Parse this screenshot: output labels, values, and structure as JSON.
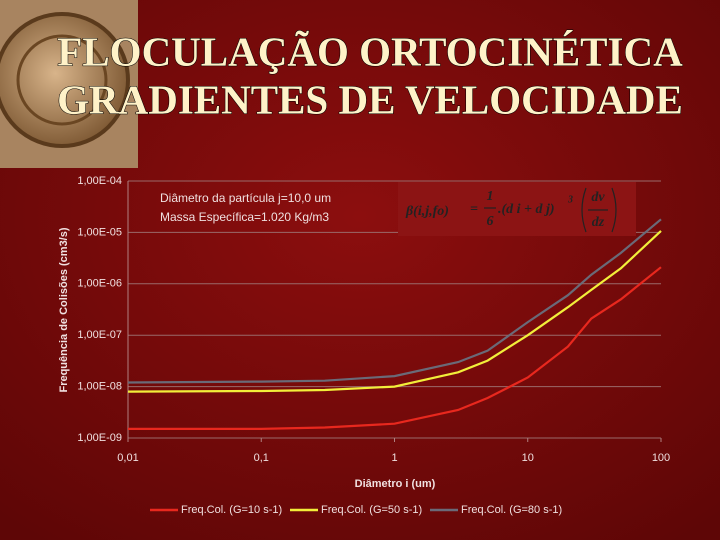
{
  "slide_title": [
    "FLOCULAÇÃO ORTOCINÉTICA",
    "GRADIENTES DE VELOCIDADE"
  ],
  "chart_data": {
    "type": "line",
    "xlabel": "Diâmetro i (um)",
    "ylabel": "Frequência de Colisões (cm3/s)",
    "xscale": "log",
    "yscale": "log",
    "grid": true,
    "legend": "bottom",
    "annotations": [
      "Diâmetro da partícula j=10,0 um",
      "Massa Específica=1.020 Kg/m3"
    ],
    "formula": {
      "lhs": "β(i,j,fo)",
      "eq": "=",
      "num": "1",
      "den": "6",
      "mid": ".(d i + d j)",
      "exp": "3",
      "dnum": "dv",
      "dden": "dz"
    },
    "xlim": [
      0.01,
      100
    ],
    "xticks": [
      {
        "value": 0.01,
        "label": "0,01"
      },
      {
        "value": 0.1,
        "label": "0,1"
      },
      1,
      10,
      100
    ],
    "ylim": [
      1e-09,
      0.0001
    ],
    "yticks": [
      {
        "value": 1e-09,
        "label": "1,00E-09"
      },
      {
        "value": 1e-08,
        "label": "1,00E-08"
      },
      {
        "value": 1e-07,
        "label": "1,00E-07"
      },
      {
        "value": 1e-06,
        "label": "1,00E-06"
      },
      {
        "value": 1e-05,
        "label": "1,00E-05"
      },
      {
        "value": 0.0001,
        "label": "1,00E-04"
      }
    ],
    "x": [
      0.01,
      0.1,
      0.3,
      1,
      3,
      5,
      10,
      20,
      30,
      50,
      100
    ],
    "series": [
      {
        "name": "Freq.Col. (G=10 s-1)",
        "color": "#e8281e",
        "values": [
          1.5e-09,
          1.5e-09,
          1.6e-09,
          1.9e-09,
          3.5e-09,
          6e-09,
          1.5e-08,
          6e-08,
          2.1e-07,
          5e-07,
          2.1e-06
        ]
      },
      {
        "name": "Freq.Col. (G=50 s-1)",
        "color": "#f2ee3a",
        "values": [
          8e-09,
          8.2e-09,
          8.6e-09,
          1e-08,
          1.9e-08,
          3.2e-08,
          1e-07,
          3.5e-07,
          7.6e-07,
          2e-06,
          1.07e-05
        ]
      },
      {
        "name": "Freq.Col. (G=80 s-1)",
        "color": "#6a6a78",
        "values": [
          1.2e-08,
          1.25e-08,
          1.3e-08,
          1.6e-08,
          3e-08,
          5e-08,
          1.8e-07,
          6e-07,
          1.5e-06,
          4e-06,
          1.8e-05
        ]
      }
    ]
  }
}
